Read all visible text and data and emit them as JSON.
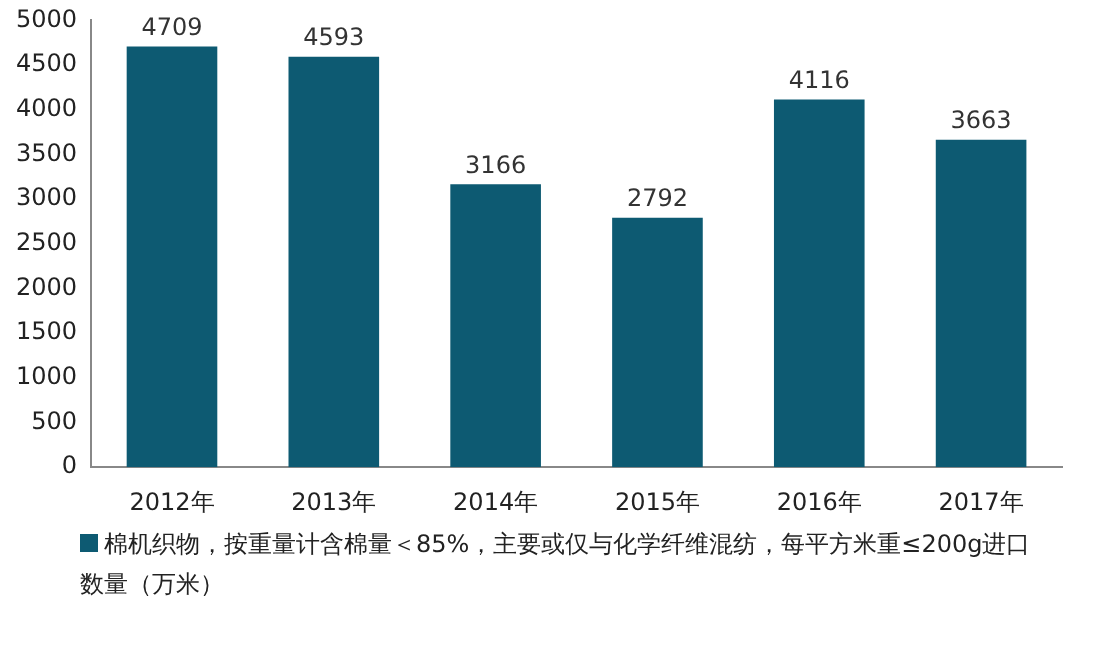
{
  "chart_data": {
    "type": "bar",
    "categories": [
      "2012年",
      "2013年",
      "2014年",
      "2015年",
      "2016年",
      "2017年"
    ],
    "series": [
      {
        "name": "棉机织物，按重量计含棉量＜85%，主要或仅与化学纤维混纺，每平方米重≤200g进口数量（万米）",
        "color": "#0d5a72",
        "values": [
          4709,
          4593,
          3166,
          2792,
          4116,
          3663
        ]
      }
    ],
    "ylim": [
      0,
      5000
    ],
    "yticks": [
      0,
      500,
      1000,
      1500,
      2000,
      2500,
      3000,
      3500,
      4000,
      4500,
      5000
    ],
    "data_labels": true,
    "legend": "bottom"
  }
}
